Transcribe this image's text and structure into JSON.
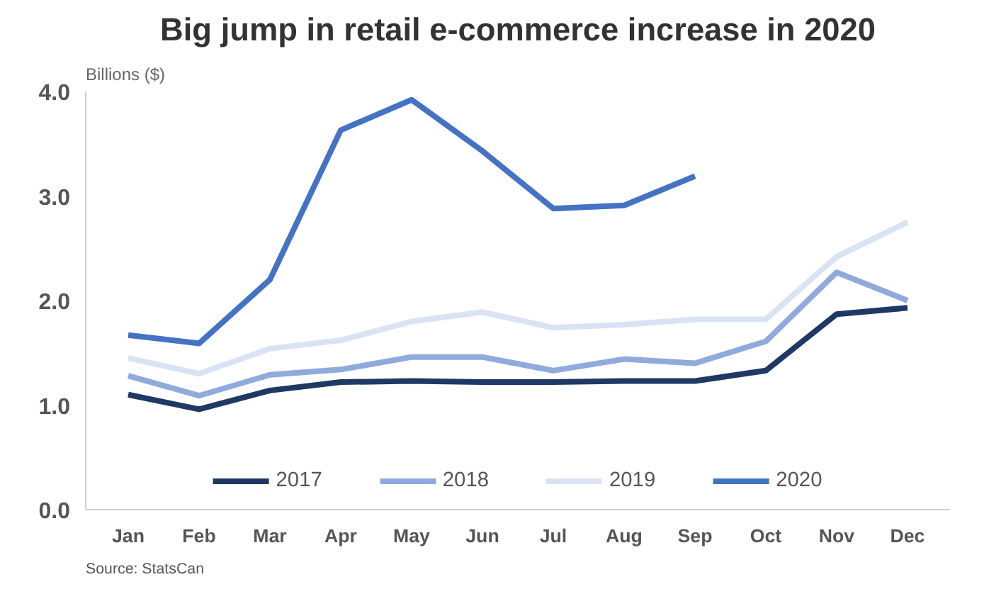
{
  "chart_data": {
    "type": "line",
    "title": "Big jump in retail e-commerce increase in 2020",
    "ylabel": "Billions ($)",
    "categories": [
      "Jan",
      "Feb",
      "Mar",
      "Apr",
      "May",
      "Jun",
      "Jul",
      "Aug",
      "Sep",
      "Oct",
      "Nov",
      "Dec"
    ],
    "series": [
      {
        "name": "2017",
        "color": "#1f3864",
        "values": [
          1.1,
          0.96,
          1.14,
          1.22,
          1.23,
          1.22,
          1.22,
          1.23,
          1.23,
          1.33,
          1.87,
          1.93
        ]
      },
      {
        "name": "2018",
        "color": "#8faadc",
        "values": [
          1.28,
          1.09,
          1.29,
          1.34,
          1.46,
          1.46,
          1.33,
          1.44,
          1.4,
          1.61,
          2.27,
          2.0
        ]
      },
      {
        "name": "2019",
        "color": "#dae3f3",
        "values": [
          1.45,
          1.3,
          1.54,
          1.62,
          1.8,
          1.89,
          1.74,
          1.77,
          1.82,
          1.82,
          2.42,
          2.75
        ]
      },
      {
        "name": "2020",
        "color": "#4472c4",
        "values": [
          1.67,
          1.59,
          2.2,
          3.63,
          3.92,
          3.43,
          2.88,
          2.91,
          3.19,
          null,
          null,
          null
        ]
      }
    ],
    "ylim": [
      0,
      4
    ],
    "yticks": [
      {
        "value": 0,
        "label": "0.0"
      },
      {
        "value": 1,
        "label": "1.0"
      },
      {
        "value": 2,
        "label": "2.0"
      },
      {
        "value": 3,
        "label": "3.0"
      },
      {
        "value": 4,
        "label": "4.0"
      }
    ],
    "grid": false,
    "legend": "bottom",
    "marker": "none",
    "line_style": "solid",
    "annotations": [
      "Source: StatsCan"
    ]
  }
}
